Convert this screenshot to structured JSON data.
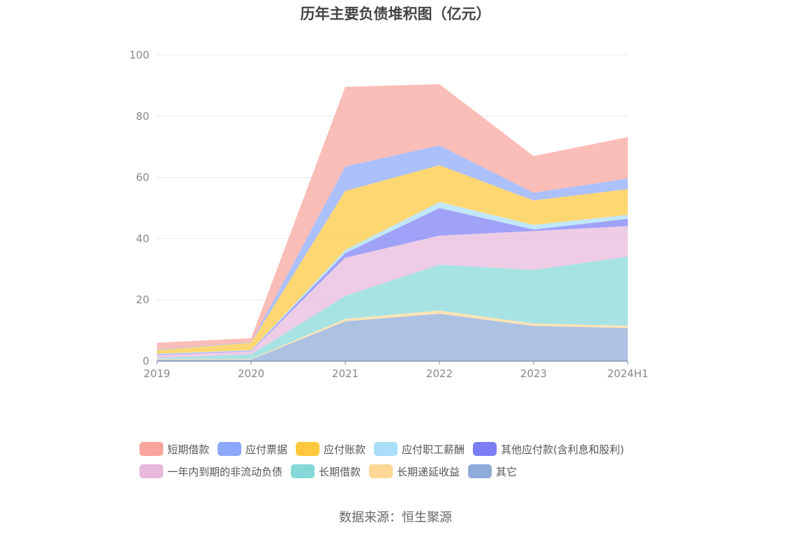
{
  "chart_data": {
    "type": "area",
    "stacked": true,
    "title": "历年主要负债堆积图（亿元）",
    "xlabel": "",
    "ylabel": "",
    "categories": [
      "2019",
      "2020",
      "2021",
      "2022",
      "2023",
      "2024H1"
    ],
    "ylim": [
      0,
      100
    ],
    "yticks": [
      0,
      20,
      40,
      60,
      80,
      100
    ],
    "grid": true,
    "legend_position": "bottom",
    "series": [
      {
        "name": "其它",
        "color": "#8eaad8",
        "values": [
          0.5,
          0.5,
          13.0,
          15.5,
          11.5,
          10.8
        ]
      },
      {
        "name": "长期递延收益",
        "color": "#ffd898",
        "values": [
          0.2,
          0.2,
          0.8,
          1.0,
          0.8,
          0.8
        ]
      },
      {
        "name": "长期借款",
        "color": "#86d8d8",
        "values": [
          0.3,
          1.5,
          7.5,
          15.0,
          17.5,
          22.5
        ]
      },
      {
        "name": "一年内到期的非流动负债",
        "color": "#e8b8dc",
        "values": [
          1.0,
          1.0,
          12.5,
          9.5,
          12.7,
          10.0
        ]
      },
      {
        "name": "其他应付款(含利息和股利)",
        "color": "#7b7ef5",
        "values": [
          0.2,
          0.2,
          1.5,
          9.0,
          0.5,
          2.4
        ]
      },
      {
        "name": "应付职工薪酬",
        "color": "#a8def8",
        "values": [
          0.2,
          0.2,
          1.0,
          2.0,
          1.5,
          1.3
        ]
      },
      {
        "name": "应付账款",
        "color": "#ffc83c",
        "values": [
          1.2,
          2.4,
          19.3,
          12.0,
          8.0,
          8.4
        ]
      },
      {
        "name": "应付票据",
        "color": "#8ca8fa",
        "values": [
          0.2,
          0.2,
          8.0,
          6.5,
          2.5,
          3.5
        ]
      },
      {
        "name": "短期借款",
        "color": "#f9a49c",
        "values": [
          2.2,
          1.3,
          26.0,
          20.0,
          12.0,
          13.5
        ]
      }
    ],
    "legend_order": [
      "短期借款",
      "应付票据",
      "应付账款",
      "应付职工薪酬",
      "其他应付款(含利息和股利)",
      "一年内到期的非流动负债",
      "长期借款",
      "长期递延收益",
      "其它"
    ]
  },
  "source": "数据来源：恒生聚源"
}
